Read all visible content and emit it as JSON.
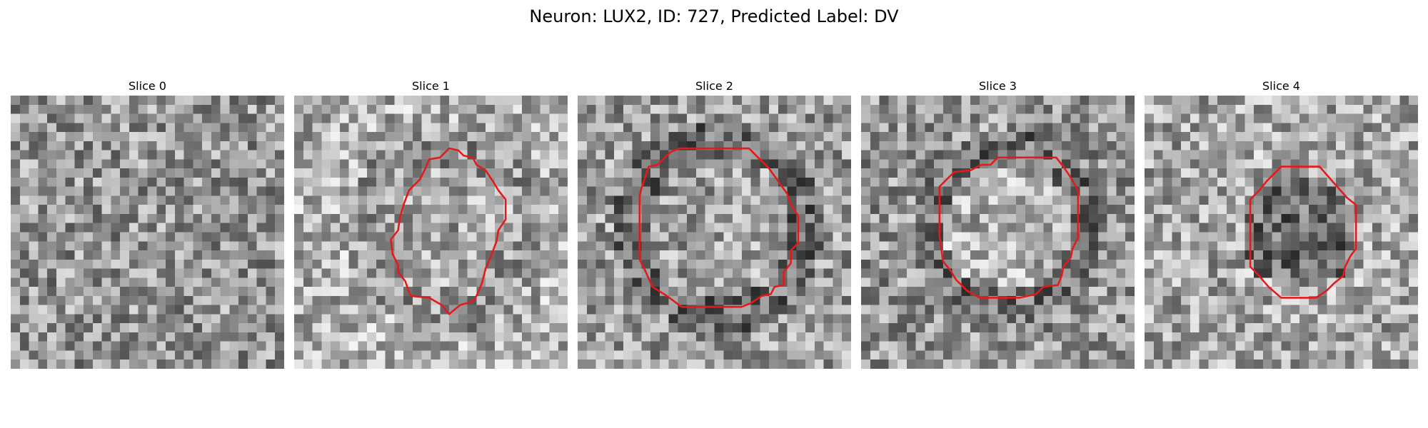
{
  "figure": {
    "title": "Neuron: LUX2, ID: 727, Predicted Label: DV"
  },
  "colors": {
    "contour": "#e31a1c",
    "colormap": "grayscale"
  },
  "panels": [
    {
      "title": "Slice 0",
      "has_contour": false
    },
    {
      "title": "Slice 1",
      "has_contour": true
    },
    {
      "title": "Slice 2",
      "has_contour": true
    },
    {
      "title": "Slice 3",
      "has_contour": true
    },
    {
      "title": "Slice 4",
      "has_contour": true
    }
  ]
}
